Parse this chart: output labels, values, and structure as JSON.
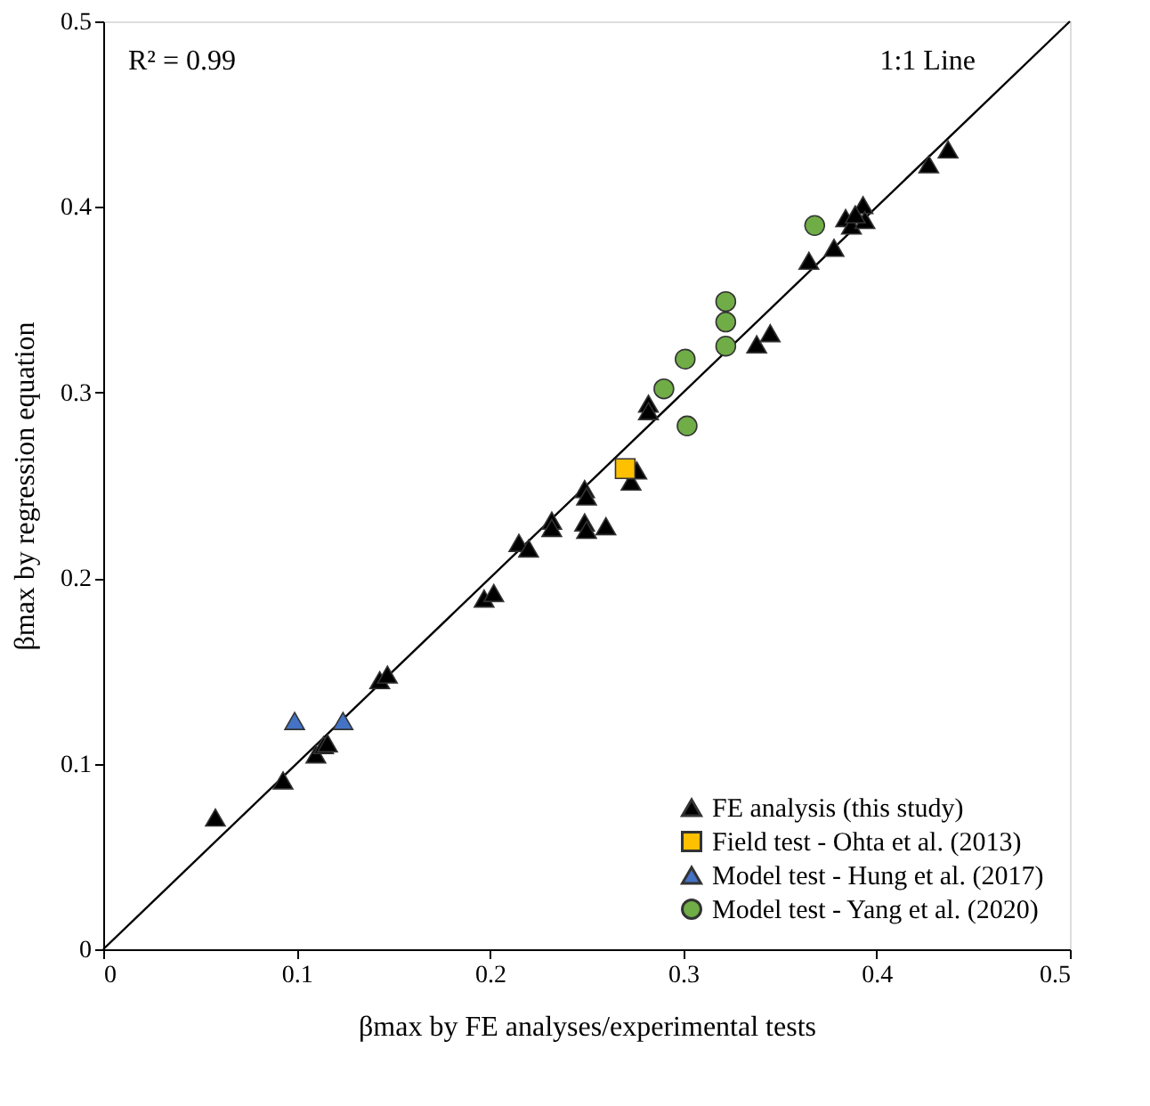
{
  "chart_data": {
    "type": "scatter",
    "xlabel": "βmax by FE analyses/experimental tests",
    "ylabel": "βmax by regression equation",
    "xlim": [
      0,
      0.5
    ],
    "ylim": [
      0,
      0.5
    ],
    "xticks": [
      0,
      0.1,
      0.2,
      0.3,
      0.4,
      0.5
    ],
    "yticks": [
      0,
      0.1,
      0.2,
      0.3,
      0.4,
      0.5
    ],
    "grid": false,
    "legend": "bottom right",
    "annotations": [
      "R² = 0.99",
      "1:1 Line"
    ],
    "series": [
      {
        "type": "line",
        "marker": "none",
        "line_style": "solid",
        "color": "#000000",
        "x": [
          0,
          0.5
        ],
        "values": [
          0,
          0.5
        ]
      },
      {
        "name": "FE analysis (this study)",
        "marker": "triangle",
        "color": "#000000",
        "x": [
          0.058,
          0.093,
          0.11,
          0.114,
          0.116,
          0.143,
          0.147,
          0.197,
          0.202,
          0.215,
          0.22,
          0.232,
          0.232,
          0.249,
          0.25,
          0.26,
          0.249,
          0.25,
          0.273,
          0.276,
          0.282,
          0.282,
          0.338,
          0.345,
          0.365,
          0.378,
          0.384,
          0.387,
          0.393,
          0.394,
          0.389,
          0.427,
          0.437
        ],
        "values": [
          0.071,
          0.091,
          0.105,
          0.11,
          0.111,
          0.145,
          0.148,
          0.189,
          0.192,
          0.219,
          0.216,
          0.231,
          0.227,
          0.23,
          0.226,
          0.228,
          0.248,
          0.244,
          0.252,
          0.258,
          0.294,
          0.29,
          0.326,
          0.332,
          0.371,
          0.378,
          0.394,
          0.39,
          0.401,
          0.393,
          0.396,
          0.423,
          0.431
        ]
      },
      {
        "name": "Field test - Ohta et al. (2013)",
        "marker": "square",
        "color": "#ffc000",
        "x": [
          0.27
        ],
        "values": [
          0.259
        ]
      },
      {
        "name": "Model test - Hung et al. (2017)",
        "marker": "triangle",
        "color": "#4472c4",
        "x": [
          0.099,
          0.124
        ],
        "values": [
          0.123,
          0.123
        ]
      },
      {
        "name": "Model test - Yang et al. (2020)",
        "marker": "circle",
        "color": "#70ad47",
        "x": [
          0.29,
          0.301,
          0.302,
          0.322,
          0.322,
          0.322,
          0.368
        ],
        "values": [
          0.302,
          0.318,
          0.282,
          0.349,
          0.338,
          0.325,
          0.39
        ]
      }
    ]
  }
}
